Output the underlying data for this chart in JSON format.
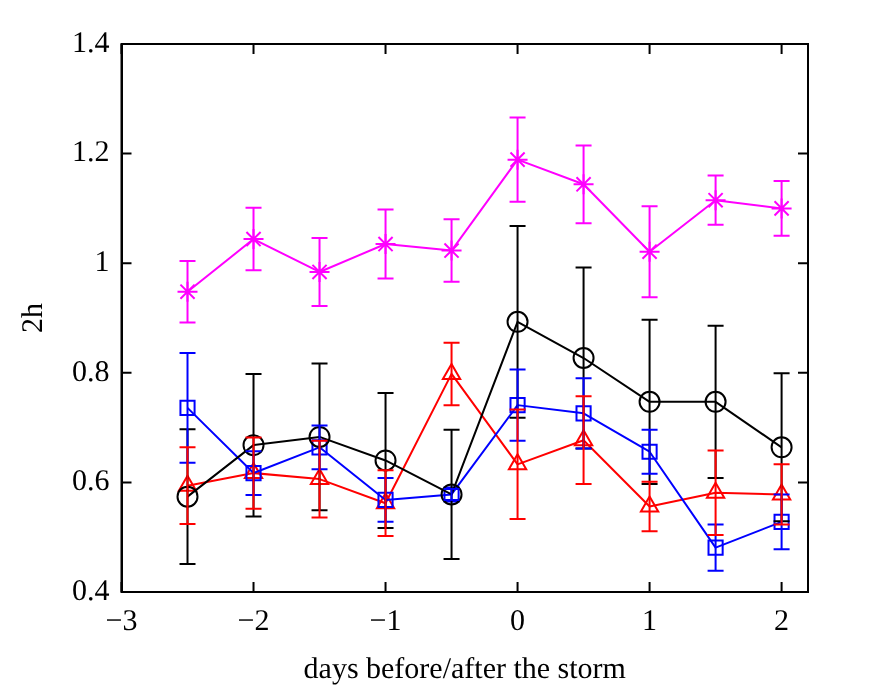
{
  "chart_data": {
    "type": "line",
    "xlabel": "days before/after the storm",
    "ylabel": "2h",
    "x": [
      -2.5,
      -2,
      -1.5,
      -1,
      -0.5,
      0,
      0.5,
      1,
      1.5,
      2
    ],
    "xlim": [
      -3,
      2.2
    ],
    "xticks": [
      {
        "value": -3,
        "label": "−3"
      },
      {
        "value": -2,
        "label": "−2"
      },
      {
        "value": -1,
        "label": "−1"
      },
      0,
      1,
      2
    ],
    "ylim": [
      0.4,
      1.4
    ],
    "yticks": [
      0.4,
      0.6,
      0.8,
      1,
      1.2,
      1.4
    ],
    "grid": false,
    "legend": false,
    "line_style": "solid",
    "series": [
      {
        "color": "#ff00ff",
        "marker": "cross",
        "values": [
          0.948,
          1.044,
          0.984,
          1.035,
          1.023,
          1.189,
          1.144,
          1.021,
          1.115,
          1.1
        ],
        "errors": [
          0.056,
          0.057,
          0.062,
          0.063,
          0.057,
          0.077,
          0.071,
          0.083,
          0.045,
          0.05
        ]
      },
      {
        "color": "#000000",
        "marker": "circle",
        "values": [
          0.574,
          0.668,
          0.683,
          0.64,
          0.578,
          0.893,
          0.827,
          0.747,
          0.747,
          0.664
        ],
        "errors": [
          0.123,
          0.13,
          0.134,
          0.123,
          0.118,
          0.175,
          0.165,
          0.15,
          0.139,
          0.135
        ]
      },
      {
        "color": "#0000ff",
        "marker": "square",
        "values": [
          0.736,
          0.617,
          0.664,
          0.568,
          0.578,
          0.741,
          0.726,
          0.656,
          0.481,
          0.528
        ],
        "errors": [
          0.1,
          0.04,
          0.04,
          0.04,
          0.01,
          0.065,
          0.064,
          0.04,
          0.042,
          0.05
        ]
      },
      {
        "color": "#ff0000",
        "marker": "triangle",
        "values": [
          0.594,
          0.617,
          0.606,
          0.562,
          0.798,
          0.633,
          0.677,
          0.556,
          0.581,
          0.578
        ],
        "errors": [
          0.07,
          0.065,
          0.07,
          0.06,
          0.057,
          0.1,
          0.08,
          0.045,
          0.077,
          0.055
        ]
      }
    ]
  }
}
